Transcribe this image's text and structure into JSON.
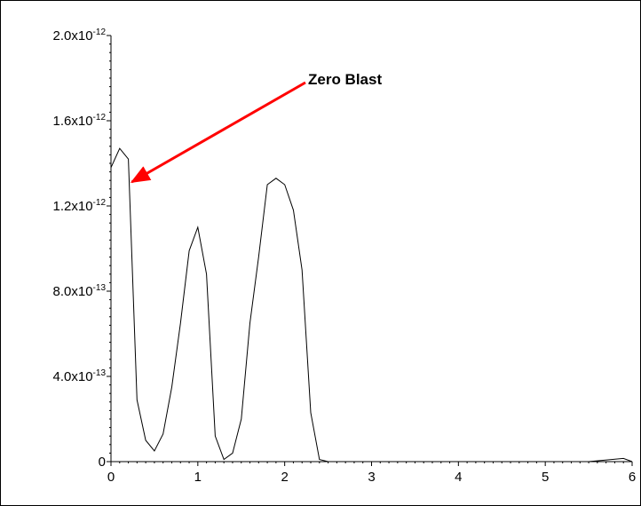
{
  "chart_data": {
    "type": "line",
    "title": "",
    "xlabel": "",
    "ylabel": "",
    "xlim": [
      0,
      6
    ],
    "ylim": [
      0,
      2e-12
    ],
    "x_ticks": [
      0,
      1,
      2,
      3,
      4,
      5,
      6
    ],
    "x_tick_labels": [
      "0",
      "1",
      "2",
      "3",
      "4",
      "5",
      "6"
    ],
    "y_ticks": [
      0,
      4e-13,
      8e-13,
      1.2e-12,
      1.6e-12,
      2e-12
    ],
    "y_tick_labels": [
      {
        "mantissa": "0",
        "exponent": ""
      },
      {
        "mantissa": "4.0x10",
        "exponent": "-13"
      },
      {
        "mantissa": "8.0x10",
        "exponent": "-13"
      },
      {
        "mantissa": "1.2x10",
        "exponent": "-12"
      },
      {
        "mantissa": "1.6x10",
        "exponent": "-12"
      },
      {
        "mantissa": "2.0x10",
        "exponent": "-12"
      }
    ],
    "grid": false,
    "series": [
      {
        "x": [
          0,
          0.1,
          0.2,
          0.3,
          0.4,
          0.5,
          0.6,
          0.7,
          0.8,
          0.9,
          1.0,
          1.1,
          1.2,
          1.3,
          1.4,
          1.5,
          1.6,
          1.7,
          1.8,
          1.9,
          2.0,
          2.1,
          2.2,
          2.3,
          2.4,
          2.5,
          3.0,
          3.5,
          4.0,
          4.5,
          5.0,
          5.5,
          5.9,
          6.0
        ],
        "y": [
          1.38e-12,
          1.47e-12,
          1.42e-12,
          2.9e-13,
          1e-13,
          5e-14,
          1.3e-13,
          3.5e-13,
          6.5e-13,
          9.9e-13,
          1.1e-12,
          8.8e-13,
          1.2e-13,
          1e-14,
          4e-14,
          2e-13,
          6.5e-13,
          9.6e-13,
          1.3e-12,
          1.33e-12,
          1.3e-12,
          1.18e-12,
          9e-13,
          2.3e-13,
          1e-14,
          0,
          0,
          0,
          0,
          0,
          0,
          0,
          1.5e-14,
          0
        ],
        "color": "#000000"
      }
    ],
    "annotations": [
      {
        "text": "Zero Blast",
        "target_x": 0.22,
        "target_y": 1.3e-12,
        "arrow_color": "#ff0000"
      }
    ]
  }
}
